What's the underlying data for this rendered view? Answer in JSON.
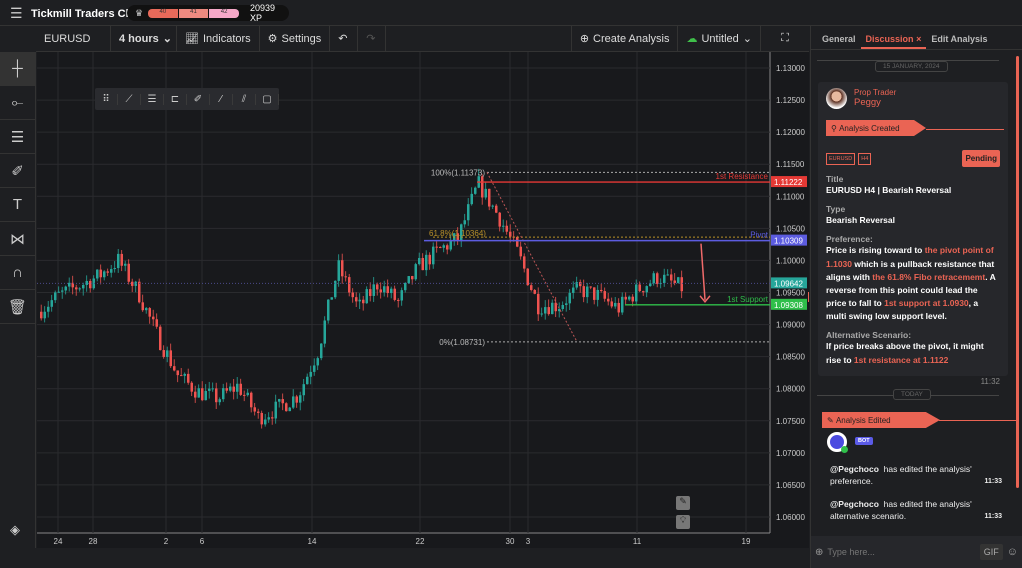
{
  "app": {
    "title": "Tickmill Traders Club",
    "levels": [
      "40",
      "41",
      "42"
    ],
    "xp": "20939 XP"
  },
  "toolbar": {
    "symbol": "EURUSD",
    "interval": "4 hours",
    "indicators": "Indicators",
    "settings": "Settings",
    "create": "Create Analysis",
    "save_name": "Untitled"
  },
  "left_tools": [
    "crosshair-icon",
    "line-icon",
    "fib-icon",
    "brush-icon",
    "text-icon",
    "pattern-icon",
    "magnet-icon",
    "trash-icon"
  ],
  "chart_data": {
    "type": "candlestick",
    "symbol": "EURUSD",
    "interval": "4 hours",
    "ylim": [
      1.0575,
      1.1325
    ],
    "y_ticks": [
      "1.13000",
      "1.12500",
      "1.12000",
      "1.11500",
      "1.11000",
      "1.10500",
      "1.10000",
      "1.09500",
      "1.09000",
      "1.08500",
      "1.08000",
      "1.07500",
      "1.07000",
      "1.06500",
      "1.06000"
    ],
    "x_ticks": [
      "24",
      "28",
      "2",
      "6",
      "14",
      "22",
      "30",
      "3",
      "11",
      "19"
    ],
    "price_path": [
      1.092,
      1.0945,
      1.096,
      1.0975,
      1.1,
      1.095,
      1.088,
      1.082,
      1.0795,
      1.0785,
      1.0805,
      1.0755,
      1.077,
      1.079,
      1.086,
      1.099,
      1.0925,
      1.0965,
      1.0935,
      1.099,
      1.1015,
      1.1035,
      1.112,
      1.107,
      1.101,
      1.093,
      1.093,
      1.0955,
      1.0945,
      1.0925,
      1.0955,
      1.0975,
      1.096
    ],
    "levels": [
      {
        "name": "1st Resistance",
        "value": "1.11222",
        "price": 1.11222,
        "color": "#e53935"
      },
      {
        "name": "Pivot",
        "value": "1.10309",
        "price": 1.10309,
        "color": "#5c5ce0"
      },
      {
        "name": "1st Support",
        "value": "1.09308",
        "price": 1.09308,
        "color": "#2fbf4a"
      }
    ],
    "fib": [
      {
        "label": "100%(1.11373)",
        "price": 1.11373
      },
      {
        "label": "61.8%(1.10364)",
        "price": 1.10364
      },
      {
        "label": "0%(1.08731)",
        "price": 1.08731
      }
    ],
    "current_price": {
      "value": "1.09642",
      "price": 1.09642
    },
    "colors": {
      "up": "#26a69a",
      "down": "#ef5350"
    }
  },
  "panel": {
    "tabs": [
      "General",
      "Discussion",
      "Edit Analysis"
    ],
    "active_tab": "Discussion",
    "date1": "15 JANUARY, 2024",
    "author_role": "Prop Trader",
    "author_name": "Peggy",
    "created": "Analysis Created",
    "tags": [
      "EURUSD",
      "H4"
    ],
    "status": "Pending",
    "title_label": "Title",
    "title": "EURUSD H4 | Bearish Reversal",
    "type_label": "Type",
    "type": "Bearish Reversal",
    "pref_label": "Preference:",
    "pref": [
      "Price is rising toward to ",
      "the pivot point of 1.1030",
      " which is a pullback resistance that aligns with ",
      "the 61.8% Fibo retracememt",
      ". A reverse from this point could lead the price to fall to ",
      "1st support at 1.0930",
      ", a multi swing low support level."
    ],
    "alt_label": "Alternative Scenario:",
    "alt": [
      "If price breaks above the pivot, it might rise to ",
      "1st resistance at 1.1122"
    ],
    "time1": "11:32",
    "date2": "TODAY",
    "edited": "Analysis Edited",
    "bot": "BOT",
    "msgs": [
      {
        "user": "@Pegchoco",
        "text": "has edited the analysis' preference.",
        "time": "11:33"
      },
      {
        "user": "@Pegchoco",
        "text": "has edited the analysis' alternative scenario.",
        "time": "11:33"
      }
    ],
    "input_placeholder": "Type here...",
    "gif": "GIF"
  },
  "accent": "#ea6454"
}
